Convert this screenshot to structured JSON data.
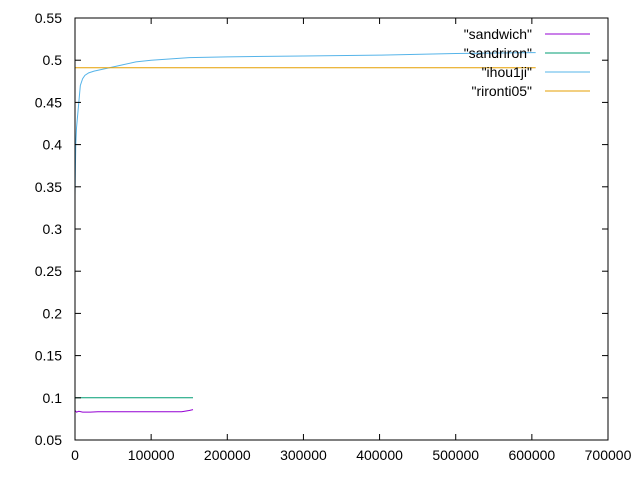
{
  "chart_data": {
    "type": "line",
    "title": "",
    "xlabel": "",
    "ylabel": "",
    "xlim": [
      0,
      700000
    ],
    "ylim": [
      0.05,
      0.55
    ],
    "x_ticks": [
      0,
      100000,
      200000,
      300000,
      400000,
      500000,
      600000,
      700000
    ],
    "x_tick_labels": [
      "0",
      "100000",
      "200000",
      "300000",
      "400000",
      "500000",
      "600000",
      "700000"
    ],
    "y_ticks": [
      0.05,
      0.1,
      0.15,
      0.2,
      0.25,
      0.3,
      0.35,
      0.4,
      0.45,
      0.5,
      0.55
    ],
    "y_tick_labels": [
      "0.05",
      "0.1",
      "0.15",
      "0.2",
      "0.25",
      "0.3",
      "0.35",
      "0.4",
      "0.45",
      "0.5",
      "0.55"
    ],
    "grid": false,
    "legend_position": "top-right",
    "series": [
      {
        "name": "\"sandwich\"",
        "color": "#9400d3",
        "points": [
          [
            0,
            0.085
          ],
          [
            2000,
            0.083
          ],
          [
            5000,
            0.084
          ],
          [
            10000,
            0.083
          ],
          [
            20000,
            0.083
          ],
          [
            30000,
            0.0835
          ],
          [
            50000,
            0.0835
          ],
          [
            80000,
            0.0835
          ],
          [
            100000,
            0.0835
          ],
          [
            120000,
            0.0835
          ],
          [
            140000,
            0.0835
          ],
          [
            150000,
            0.085
          ],
          [
            155000,
            0.086
          ]
        ]
      },
      {
        "name": "\"sandriron\"",
        "color": "#009e73",
        "points": [
          [
            0,
            0.1
          ],
          [
            50000,
            0.1
          ],
          [
            100000,
            0.1
          ],
          [
            155000,
            0.1
          ]
        ]
      },
      {
        "name": "\"ihou1ji\"",
        "color": "#56b4e9",
        "points": [
          [
            0,
            0.34
          ],
          [
            1000,
            0.4
          ],
          [
            2000,
            0.42
          ],
          [
            4000,
            0.44
          ],
          [
            7000,
            0.47
          ],
          [
            10000,
            0.478
          ],
          [
            13000,
            0.482
          ],
          [
            18000,
            0.485
          ],
          [
            25000,
            0.487
          ],
          [
            40000,
            0.49
          ],
          [
            60000,
            0.494
          ],
          [
            80000,
            0.498
          ],
          [
            100000,
            0.5
          ],
          [
            150000,
            0.503
          ],
          [
            200000,
            0.504
          ],
          [
            300000,
            0.505
          ],
          [
            400000,
            0.506
          ],
          [
            500000,
            0.508
          ],
          [
            600000,
            0.509
          ],
          [
            605000,
            0.509
          ]
        ]
      },
      {
        "name": "\"rironti05\"",
        "color": "#e69f00",
        "points": [
          [
            0,
            0.491
          ],
          [
            605000,
            0.491
          ]
        ]
      }
    ]
  }
}
